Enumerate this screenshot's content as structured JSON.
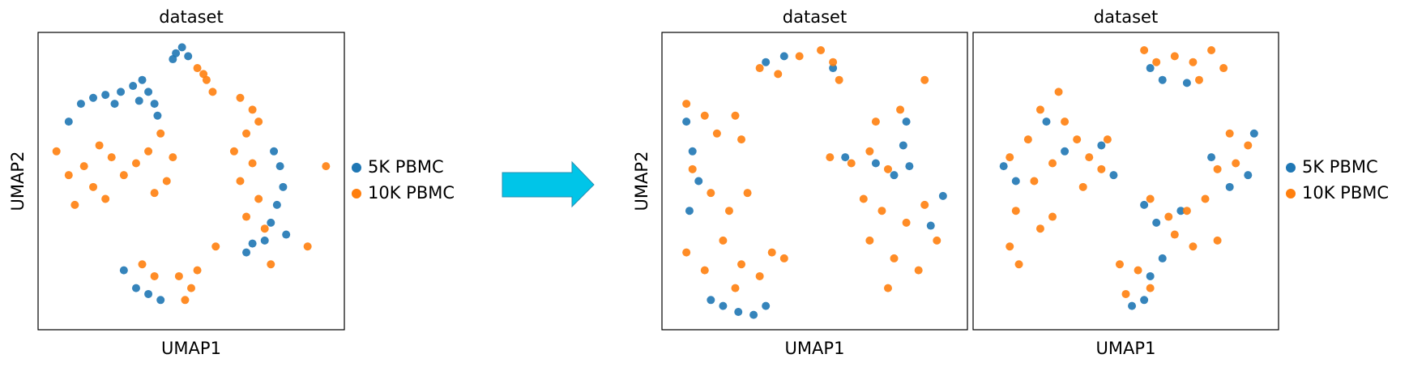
{
  "chart_data": [
    {
      "type": "scatter",
      "title": "dataset",
      "xlabel": "UMAP1",
      "ylabel": "UMAP2",
      "xlim": [
        0,
        100
      ],
      "ylim": [
        0,
        100
      ],
      "legend": "right",
      "series": [
        {
          "name": "5K PBMC",
          "color": "#1f77b4",
          "x": [
            45,
            47,
            44,
            49,
            10,
            14,
            18,
            22,
            27,
            31,
            34,
            36,
            38,
            39,
            33,
            25,
            77,
            79,
            80,
            78,
            76,
            81,
            74,
            28,
            32,
            40,
            36,
            68,
            70
          ],
          "y": [
            93,
            95,
            91,
            92,
            70,
            76,
            78,
            79,
            80,
            82,
            84,
            80,
            76,
            72,
            77,
            76,
            60,
            55,
            48,
            42,
            36,
            32,
            30,
            20,
            14,
            10,
            12,
            26,
            29
          ]
        },
        {
          "name": "10K PBMC",
          "color": "#ff7f0e",
          "x": [
            52,
            55,
            57,
            54,
            6,
            10,
            12,
            15,
            20,
            24,
            28,
            32,
            36,
            40,
            44,
            42,
            38,
            18,
            22,
            66,
            70,
            68,
            72,
            64,
            70,
            66,
            72,
            68,
            74,
            76,
            52,
            50,
            46,
            38,
            34,
            48,
            94,
            88,
            58
          ],
          "y": [
            88,
            84,
            80,
            86,
            60,
            52,
            42,
            55,
            62,
            58,
            52,
            56,
            60,
            66,
            58,
            50,
            46,
            48,
            44,
            78,
            74,
            66,
            70,
            60,
            56,
            50,
            44,
            38,
            34,
            22,
            20,
            14,
            18,
            18,
            22,
            10,
            55,
            28,
            28
          ]
        }
      ]
    },
    {
      "type": "scatter",
      "title": "dataset",
      "xlabel": "UMAP1",
      "ylabel": "UMAP2",
      "xlim": [
        0,
        100
      ],
      "ylim": [
        0,
        100
      ],
      "series": [
        {
          "name": "5K PBMC",
          "color": "#1f77b4",
          "x": [
            8,
            10,
            12,
            9,
            20,
            25,
            30,
            34,
            16,
            80,
            79,
            81,
            76,
            92,
            88,
            34,
            40,
            56,
            60,
            70
          ],
          "y": [
            70,
            60,
            50,
            40,
            8,
            6,
            5,
            8,
            10,
            70,
            62,
            55,
            52,
            45,
            35,
            90,
            92,
            88,
            58,
            56
          ]
        },
        {
          "name": "10K PBMC",
          "color": "#ff7f0e",
          "x": [
            32,
            38,
            45,
            52,
            56,
            58,
            8,
            14,
            18,
            24,
            26,
            10,
            16,
            22,
            28,
            8,
            14,
            20,
            26,
            32,
            24,
            36,
            40,
            55,
            62,
            68,
            74,
            66,
            72,
            80,
            86,
            68,
            76,
            84,
            90,
            74,
            70,
            86,
            78
          ],
          "y": [
            88,
            86,
            92,
            94,
            90,
            84,
            76,
            72,
            66,
            72,
            64,
            54,
            46,
            40,
            46,
            26,
            20,
            30,
            22,
            18,
            14,
            26,
            24,
            58,
            56,
            60,
            54,
            44,
            40,
            36,
            42,
            30,
            24,
            20,
            30,
            14,
            70,
            84,
            74
          ]
        }
      ]
    },
    {
      "type": "scatter",
      "title": "dataset",
      "xlabel": "UMAP1",
      "xlim": [
        0,
        100
      ],
      "ylim": [
        0,
        100
      ],
      "legend": "right",
      "series": [
        {
          "name": "5K PBMC",
          "color": "#1f77b4",
          "x": [
            58,
            62,
            70,
            10,
            14,
            30,
            42,
            46,
            56,
            60,
            62,
            56,
            52,
            58,
            78,
            84,
            90,
            92,
            24,
            68
          ],
          "y": [
            88,
            84,
            83,
            55,
            50,
            60,
            62,
            52,
            42,
            36,
            24,
            10,
            8,
            18,
            58,
            48,
            52,
            66,
            70,
            40
          ]
        },
        {
          "name": "10K PBMC",
          "color": "#ff7f0e",
          "x": [
            56,
            60,
            66,
            72,
            78,
            82,
            74,
            12,
            18,
            22,
            28,
            30,
            34,
            38,
            42,
            36,
            26,
            20,
            44,
            26,
            22,
            14,
            12,
            15,
            58,
            64,
            70,
            76,
            80,
            86,
            90,
            84,
            80,
            72,
            66,
            50,
            54,
            58,
            48
          ],
          "y": [
            94,
            90,
            92,
            90,
            94,
            88,
            84,
            58,
            64,
            74,
            80,
            70,
            64,
            58,
            54,
            48,
            56,
            50,
            64,
            38,
            34,
            40,
            28,
            22,
            44,
            38,
            40,
            44,
            54,
            56,
            62,
            66,
            30,
            28,
            32,
            12,
            20,
            14,
            22
          ]
        }
      ]
    }
  ]
}
